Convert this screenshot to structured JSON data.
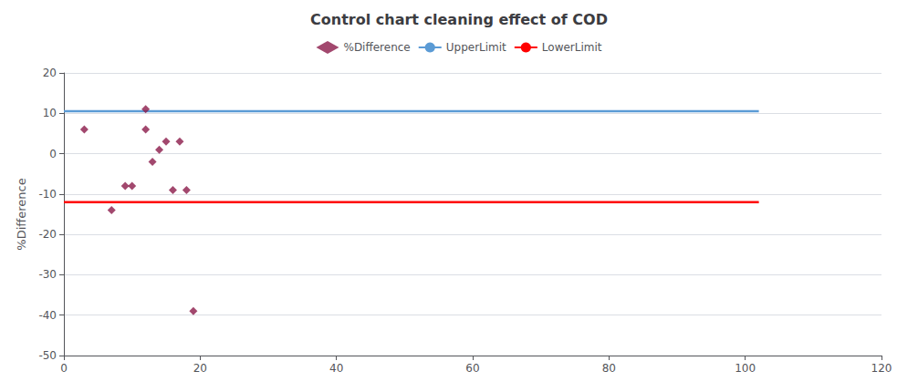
{
  "chart_data": {
    "type": "scatter",
    "title": "Control chart cleaning effect of COD",
    "ylabel": "%Difference",
    "series": [
      {
        "name": "%Difference",
        "type": "scatter",
        "marker": "diamond",
        "color": "#8B1A4A",
        "x": [
          3,
          7,
          9,
          10,
          12,
          12,
          13,
          14,
          15,
          16,
          17,
          18,
          19
        ],
        "values": [
          6,
          -14,
          -8,
          -8,
          11,
          6,
          -2,
          1,
          3,
          -9,
          3,
          -9,
          -39
        ]
      },
      {
        "name": "UpperLimit",
        "type": "line",
        "color": "#5B9BD5",
        "x": [
          0,
          102
        ],
        "values": [
          10.5,
          10.5
        ]
      },
      {
        "name": "LowerLimit",
        "type": "line",
        "color": "#FF0000",
        "x": [
          0,
          102
        ],
        "values": [
          -12.0,
          -12.0
        ]
      }
    ],
    "xlim": [
      0,
      120
    ],
    "xticks": [
      0,
      20,
      40,
      60,
      80,
      100,
      120
    ],
    "ylim": [
      -50,
      20
    ],
    "yticks": [
      -50,
      -40,
      -30,
      -20,
      -10,
      0,
      10,
      20
    ],
    "grid": true,
    "legend": "top"
  }
}
